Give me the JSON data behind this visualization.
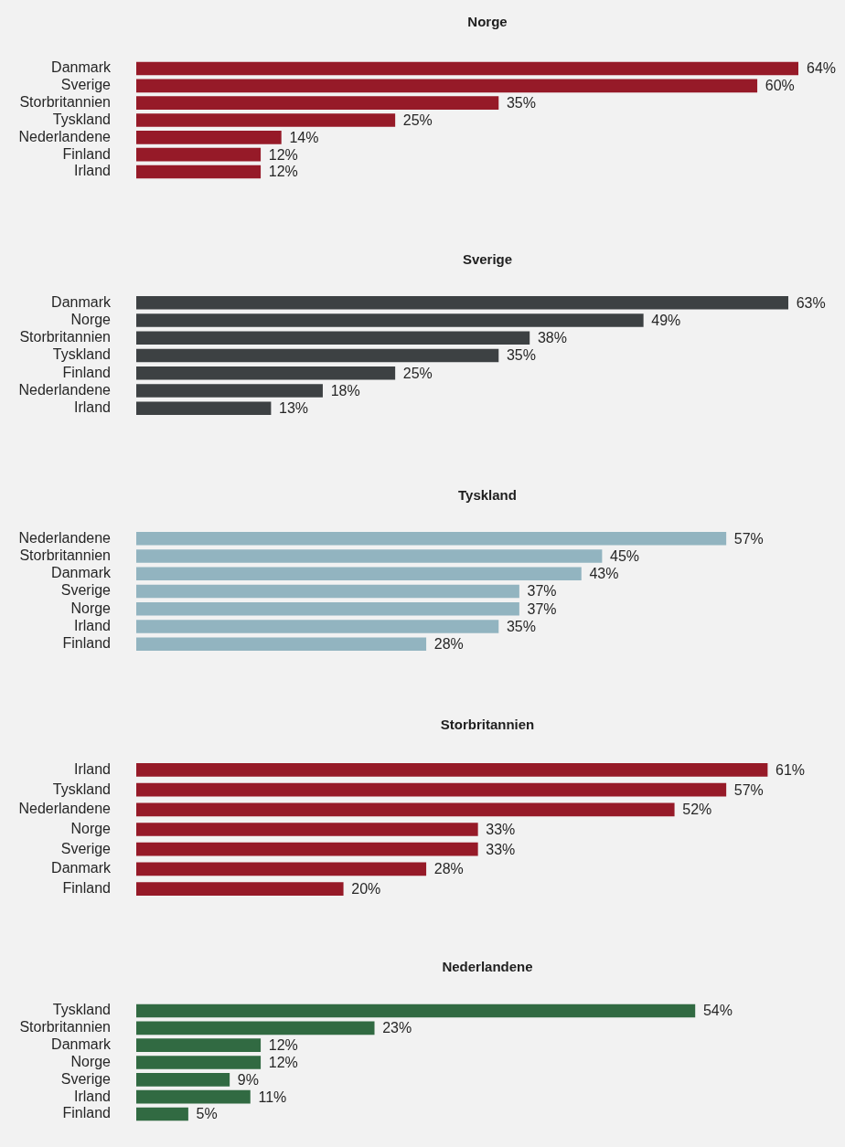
{
  "chart_data": [
    {
      "type": "bar",
      "orientation": "horizontal",
      "title": "Norge",
      "categories": [
        "Danmark",
        "Sverige",
        "Storbritannien",
        "Tyskland",
        "Nederlandene",
        "Finland",
        "Irland"
      ],
      "values": [
        64,
        60,
        35,
        25,
        14,
        12,
        12
      ],
      "color": "#961a28",
      "value_labels": [
        "64%",
        "60%",
        "35%",
        "25%",
        "14%",
        "12%",
        "12%"
      ]
    },
    {
      "type": "bar",
      "orientation": "horizontal",
      "title": "Sverige",
      "categories": [
        "Danmark",
        "Norge",
        "Storbritannien",
        "Tyskland",
        "Finland",
        "Nederlandene",
        "Irland"
      ],
      "values": [
        63,
        49,
        38,
        35,
        25,
        18,
        13
      ],
      "color": "#3d4143",
      "value_labels": [
        "63%",
        "49%",
        "38%",
        "35%",
        "25%",
        "18%",
        "13%"
      ]
    },
    {
      "type": "bar",
      "orientation": "horizontal",
      "title": "Tyskland",
      "categories": [
        "Nederlandene",
        "Storbritannien",
        "Danmark",
        "Sverige",
        "Norge",
        "Irland",
        "Finland"
      ],
      "values": [
        57,
        45,
        43,
        37,
        37,
        35,
        28
      ],
      "color": "#92b4c0",
      "value_labels": [
        "57%",
        "45%",
        "43%",
        "37%",
        "37%",
        "35%",
        "28%"
      ]
    },
    {
      "type": "bar",
      "orientation": "horizontal",
      "title": "Storbritannien",
      "categories": [
        "Irland",
        "Tyskland",
        "Nederlandene",
        "Norge",
        "Sverige",
        "Danmark",
        "Finland"
      ],
      "values": [
        61,
        57,
        52,
        33,
        33,
        28,
        20
      ],
      "color": "#961a28",
      "value_labels": [
        "61%",
        "57%",
        "52%",
        "33%",
        "33%",
        "28%",
        "20%"
      ]
    },
    {
      "type": "bar",
      "orientation": "horizontal",
      "title": "Nederlandene",
      "categories": [
        "Tyskland",
        "Storbritannien",
        "Danmark",
        "Norge",
        "Sverige",
        "Irland",
        "Finland"
      ],
      "values": [
        54,
        23,
        12,
        12,
        9,
        11,
        5
      ],
      "color": "#316a42",
      "value_labels": [
        "54%",
        "23%",
        "12%",
        "12%",
        "9%",
        "11%",
        "5%"
      ]
    }
  ]
}
